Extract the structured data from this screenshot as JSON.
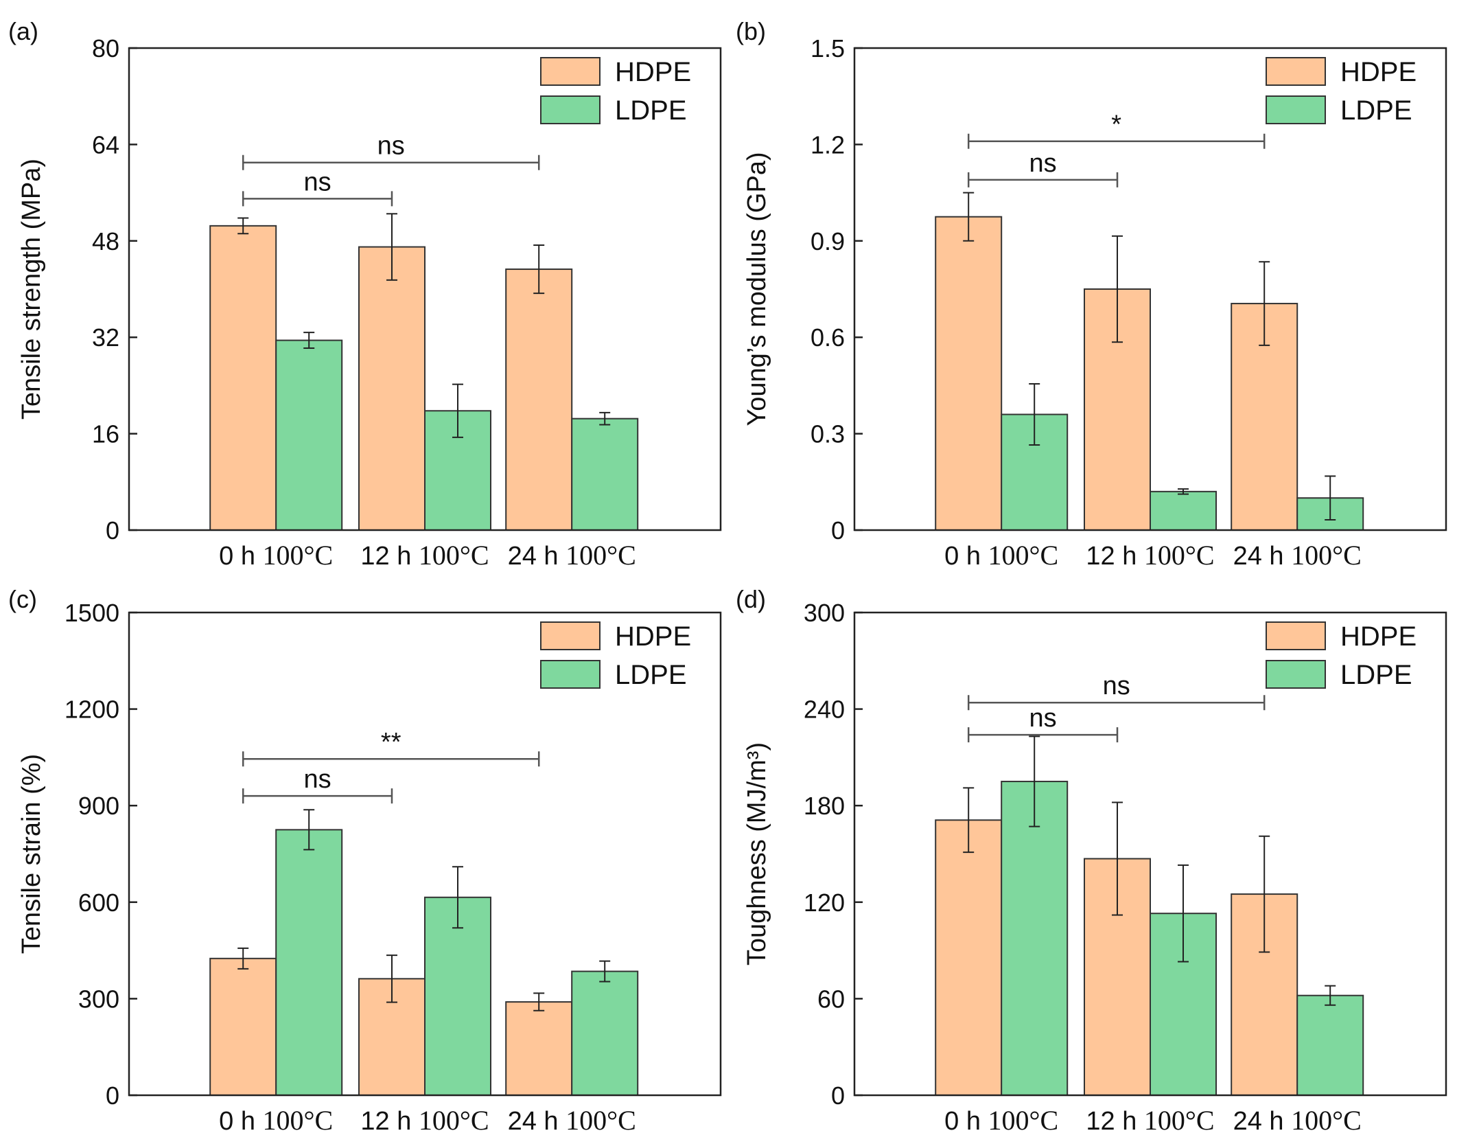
{
  "colors": {
    "hdpe": "#FFC699",
    "ldpe": "#7FD89E",
    "bar_edge": "#333333",
    "axis": "#222222",
    "significance_line": "#555555"
  },
  "chart_data": [
    {
      "type": "bar",
      "panel_label": "(a)",
      "ylabel": "Tensile strength (MPa)",
      "ylim": [
        0,
        80
      ],
      "yticks": [
        0,
        16,
        32,
        48,
        64,
        80
      ],
      "ytick_labels": [
        "0",
        "16",
        "32",
        "48",
        "64",
        "80"
      ],
      "categories": [
        {
          "time": "0 h",
          "temp": "100°C"
        },
        {
          "time": "12 h",
          "temp": "100°C"
        },
        {
          "time": "24 h",
          "temp": "100°C"
        }
      ],
      "series": [
        {
          "name": "HDPE",
          "values": [
            50.5,
            47.0,
            43.3
          ],
          "errors": [
            1.3,
            5.5,
            4.0
          ]
        },
        {
          "name": "LDPE",
          "values": [
            31.5,
            19.8,
            18.5
          ],
          "errors": [
            1.3,
            4.4,
            1.0
          ]
        }
      ],
      "legend": {
        "entries": [
          "HDPE",
          "LDPE"
        ],
        "position": "top-right"
      },
      "significance": [
        {
          "label": "ns",
          "from": 0,
          "to": 1,
          "y": 55.0
        },
        {
          "label": "ns",
          "from": 0,
          "to": 2,
          "y": 61.0
        }
      ]
    },
    {
      "type": "bar",
      "panel_label": "(b)",
      "ylabel": "Young’s modulus (GPa)",
      "ylim": [
        0,
        1.5
      ],
      "yticks": [
        0,
        0.3,
        0.6,
        0.9,
        1.2,
        1.5
      ],
      "ytick_labels": [
        "0",
        "0.3",
        "0.6",
        "0.9",
        "1.2",
        "1.5"
      ],
      "categories": [
        {
          "time": "0 h",
          "temp": "100°C"
        },
        {
          "time": "12 h",
          "temp": "100°C"
        },
        {
          "time": "24 h",
          "temp": "100°C"
        }
      ],
      "series": [
        {
          "name": "HDPE",
          "values": [
            0.975,
            0.75,
            0.705
          ],
          "errors": [
            0.075,
            0.165,
            0.13
          ]
        },
        {
          "name": "LDPE",
          "values": [
            0.36,
            0.12,
            0.1
          ],
          "errors": [
            0.095,
            0.008,
            0.068
          ]
        }
      ],
      "legend": {
        "entries": [
          "HDPE",
          "LDPE"
        ],
        "position": "top-right"
      },
      "significance": [
        {
          "label": "ns",
          "from": 0,
          "to": 1,
          "y": 1.09
        },
        {
          "label": "*",
          "from": 0,
          "to": 2,
          "y": 1.21
        }
      ]
    },
    {
      "type": "bar",
      "panel_label": "(c)",
      "ylabel": "Tensile strain (%)",
      "ylim": [
        0,
        1500
      ],
      "yticks": [
        0,
        300,
        600,
        900,
        1200,
        1500
      ],
      "ytick_labels": [
        "0",
        "300",
        "600",
        "900",
        "1200",
        "1500"
      ],
      "categories": [
        {
          "time": "0 h",
          "temp": "100°C"
        },
        {
          "time": "12 h",
          "temp": "100°C"
        },
        {
          "time": "24 h",
          "temp": "100°C"
        }
      ],
      "series": [
        {
          "name": "HDPE",
          "values": [
            425,
            362,
            290
          ],
          "errors": [
            32,
            73,
            27
          ]
        },
        {
          "name": "LDPE",
          "values": [
            825,
            615,
            385
          ],
          "errors": [
            62,
            95,
            32
          ]
        }
      ],
      "legend": {
        "entries": [
          "HDPE",
          "LDPE"
        ],
        "position": "top-right"
      },
      "significance": [
        {
          "label": "ns",
          "from": 0,
          "to": 1,
          "y": 930
        },
        {
          "label": "**",
          "from": 0,
          "to": 2,
          "y": 1045
        }
      ]
    },
    {
      "type": "bar",
      "panel_label": "(d)",
      "ylabel": "Toughness (MJ/m³)",
      "ylim": [
        0,
        300
      ],
      "yticks": [
        0,
        60,
        120,
        180,
        240,
        300
      ],
      "ytick_labels": [
        "0",
        "60",
        "120",
        "180",
        "240",
        "300"
      ],
      "categories": [
        {
          "time": "0 h",
          "temp": "100°C"
        },
        {
          "time": "12 h",
          "temp": "100°C"
        },
        {
          "time": "24 h",
          "temp": "100°C"
        }
      ],
      "series": [
        {
          "name": "HDPE",
          "values": [
            171,
            147,
            125
          ],
          "errors": [
            20,
            35,
            36
          ]
        },
        {
          "name": "LDPE",
          "values": [
            195,
            113,
            62
          ],
          "errors": [
            28,
            30,
            6
          ]
        }
      ],
      "legend": {
        "entries": [
          "HDPE",
          "LDPE"
        ],
        "position": "top-right"
      },
      "significance": [
        {
          "label": "ns",
          "from": 0,
          "to": 1,
          "y": 224
        },
        {
          "label": "ns",
          "from": 0,
          "to": 2,
          "y": 244
        }
      ]
    }
  ]
}
